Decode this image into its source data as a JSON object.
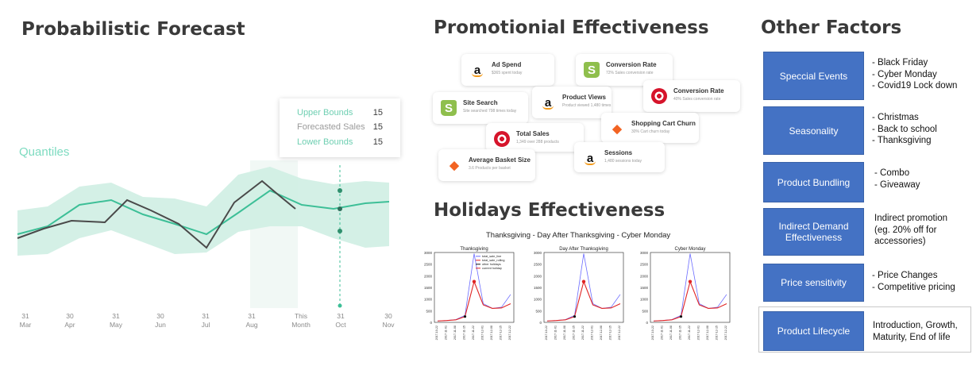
{
  "forecast": {
    "title": "Probabilistic Forecast",
    "quantiles_label": "Quantiles",
    "tooltip": [
      {
        "label": "Upper Bounds",
        "value": "15"
      },
      {
        "label": "Forecasted Sales",
        "value": "15"
      },
      {
        "label": "Lower Bounds",
        "value": "15"
      }
    ],
    "x_ticks": [
      {
        "top": "31",
        "bottom": "Mar"
      },
      {
        "top": "30",
        "bottom": "Apr"
      },
      {
        "top": "31",
        "bottom": "May"
      },
      {
        "top": "30",
        "bottom": "Jun"
      },
      {
        "top": "31",
        "bottom": "Jul"
      },
      {
        "top": "31",
        "bottom": "Aug"
      },
      {
        "top": "This",
        "bottom": "Month"
      },
      {
        "top": "31",
        "bottom": "Oct"
      },
      {
        "top": "30",
        "bottom": "Nov"
      }
    ],
    "colors": {
      "band": "#cfeee3",
      "forecast": "#3dbf97",
      "actual": "#4a4a4a",
      "point": "#2f7d63"
    }
  },
  "promotional": {
    "title": "Promotionial Effectiveness",
    "cards": [
      {
        "icon": "amazon-logo",
        "title": "Ad Spend",
        "subtitle": "$365 spent today"
      },
      {
        "icon": "shopify-logo",
        "title": "Conversion Rate",
        "subtitle": "72% Sales conversion rate"
      },
      {
        "icon": "target-logo",
        "title": "Conversion Rate",
        "subtitle": "40% Sales conversion rate"
      },
      {
        "icon": "amazon-logo",
        "title": "Product Views",
        "subtitle": "Product viewed 1,480 times"
      },
      {
        "icon": "shopify-logo",
        "title": "Site Search",
        "subtitle": "Site searched 798 times today"
      },
      {
        "icon": "magento-logo",
        "title": "Shopping Cart Churn",
        "subtitle": "30% Cart churn today"
      },
      {
        "icon": "target-logo",
        "title": "Total Sales",
        "subtitle": "1,349 over 288 products"
      },
      {
        "icon": "amazon-logo",
        "title": "Sessions",
        "subtitle": "1,480 sessions today"
      },
      {
        "icon": "magento-logo",
        "title": "Average Basket Size",
        "subtitle": "3.6 Products per basket"
      }
    ]
  },
  "holidays": {
    "title": "Holidays Effectiveness",
    "figure_title": "Thanksgiving - Day After Thanksgiving - Cyber Monday",
    "legend": [
      "total_sale_line",
      "total_sale_rolling",
      "other holidays",
      "current holiday"
    ],
    "y_ticks": [
      "3000",
      "2500",
      "2000",
      "1500",
      "1000",
      "500",
      "0"
    ],
    "x_ticks": [
      "2017-10-22",
      "2017-11-01",
      "2017-11-08",
      "2017-11-15",
      "2017-11-22",
      "2017-12-01",
      "2017-12-08",
      "2017-12-15",
      "2017-12-22"
    ],
    "colors": {
      "raw": "#6b6bff",
      "rolling": "#e02424",
      "marker_other": "#111111",
      "marker_current": "#e02424"
    }
  },
  "chart_data": [
    {
      "type": "line",
      "title": "Thanksgiving",
      "x": [
        "2017-10-22",
        "2017-11-01",
        "2017-11-08",
        "2017-11-15",
        "2017-11-22",
        "2017-12-01",
        "2017-12-08",
        "2017-12-15",
        "2017-12-22"
      ],
      "series": [
        {
          "name": "total_sale_line",
          "values": [
            60,
            80,
            120,
            300,
            2950,
            800,
            600,
            650,
            1200
          ]
        },
        {
          "name": "total_sale_rolling",
          "values": [
            60,
            80,
            110,
            250,
            1750,
            750,
            600,
            620,
            800
          ]
        }
      ],
      "ylim": [
        0,
        3000
      ]
    },
    {
      "type": "line",
      "title": "Day After Thanksgiving",
      "x": [
        "2017-10-22",
        "2017-11-01",
        "2017-11-08",
        "2017-11-15",
        "2017-11-22",
        "2017-12-01",
        "2017-12-08",
        "2017-12-15",
        "2017-12-22"
      ],
      "series": [
        {
          "name": "total_sale_line",
          "values": [
            60,
            80,
            120,
            300,
            2950,
            800,
            600,
            650,
            1200
          ]
        },
        {
          "name": "total_sale_rolling",
          "values": [
            60,
            80,
            110,
            250,
            1750,
            750,
            600,
            620,
            800
          ]
        }
      ],
      "ylim": [
        0,
        3000
      ]
    },
    {
      "type": "line",
      "title": "Cyber Monday",
      "x": [
        "2017-10-22",
        "2017-11-01",
        "2017-11-08",
        "2017-11-15",
        "2017-11-22",
        "2017-12-01",
        "2017-12-08",
        "2017-12-15",
        "2017-12-22"
      ],
      "series": [
        {
          "name": "total_sale_line",
          "values": [
            60,
            80,
            120,
            300,
            2950,
            800,
            600,
            650,
            1200
          ]
        },
        {
          "name": "total_sale_rolling",
          "values": [
            60,
            80,
            110,
            250,
            1750,
            750,
            600,
            620,
            800
          ]
        }
      ],
      "ylim": [
        0,
        3000
      ]
    }
  ],
  "factors": {
    "title": "Other Factors",
    "items": [
      {
        "label": "Speccial Events",
        "details": "- Black Friday\n- Cyber Monday\n- Covid19 Lock down"
      },
      {
        "label": "Seasonality",
        "details": "- Christmas\n- Back to school\n- Thanksgiving"
      },
      {
        "label": "Product Bundling",
        "details": "- Combo\n- Giveaway"
      },
      {
        "label": "Indirect Demand Effectiveness",
        "details": "Indirect promotion\n(eg. 20% off for\naccessories)"
      },
      {
        "label": "Price sensitivity",
        "details": "- Price Changes\n- Competitive pricing"
      },
      {
        "label": "Product Lifecycle",
        "details": "Introduction, Growth,\nMaturity, End of life"
      }
    ]
  }
}
